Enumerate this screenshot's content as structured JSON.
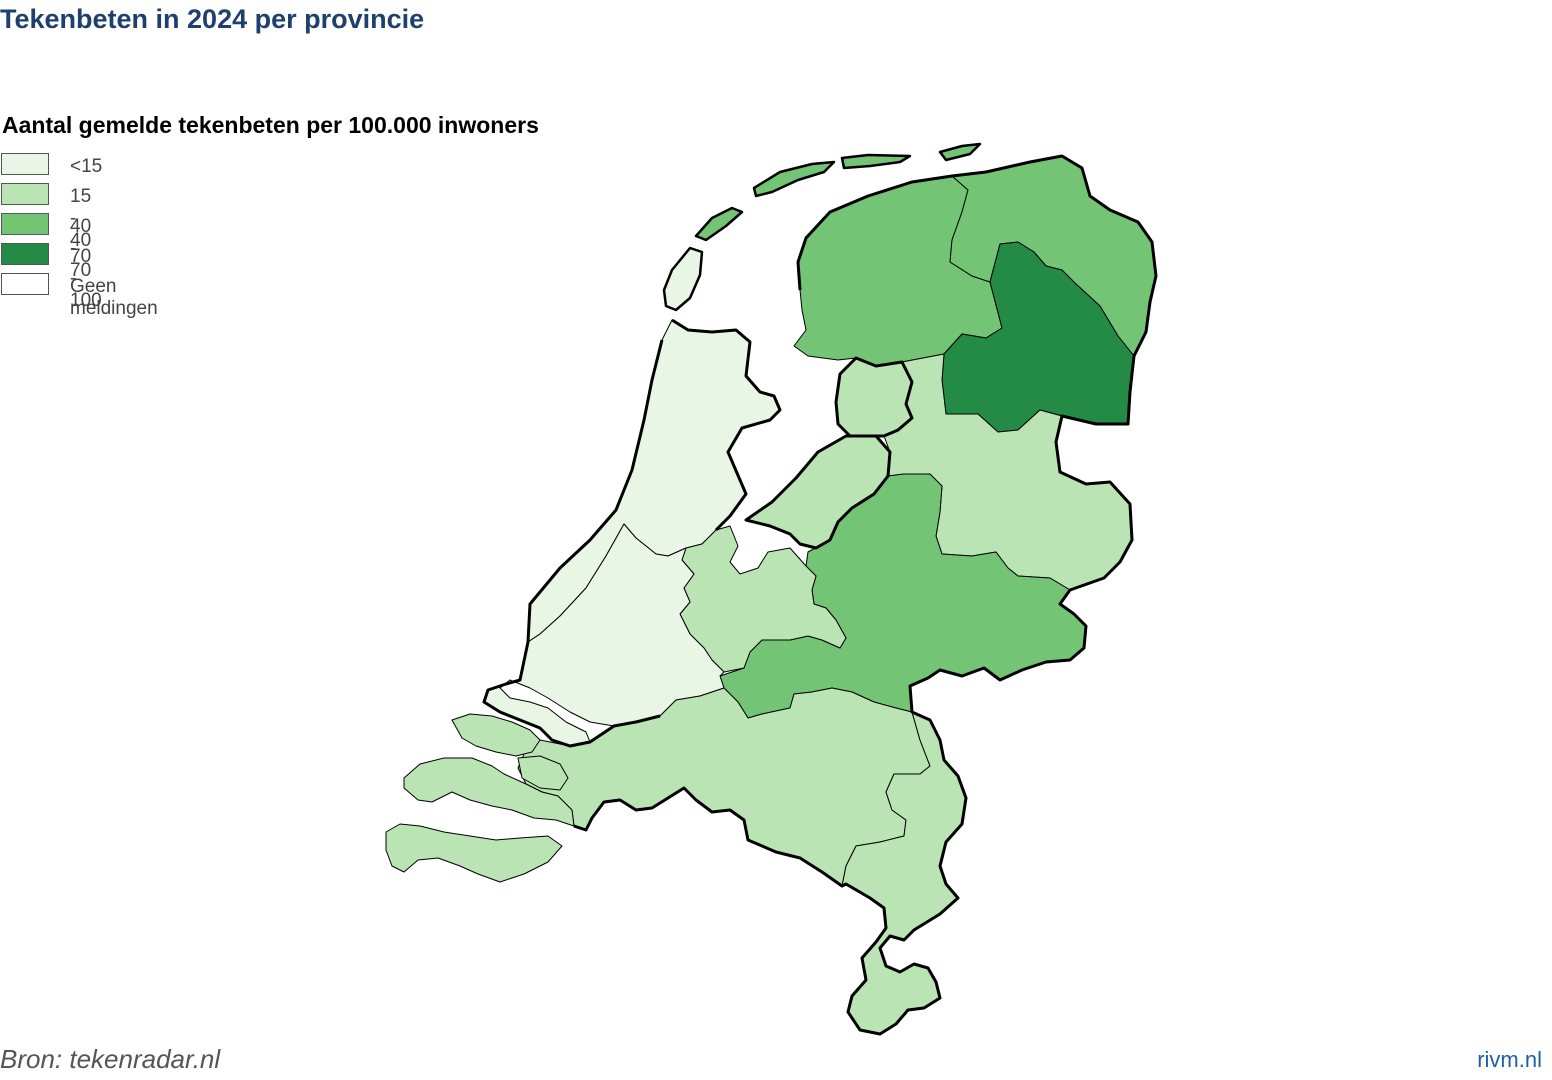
{
  "title": "Tekenbeten in 2024 per provincie",
  "subtitle": "Aantal gemelde tekenbeten per 100.000 inwoners",
  "legend": [
    {
      "label": "<15",
      "color": "#eaf6e5"
    },
    {
      "label": "15 - 40",
      "color": "#bae4b3"
    },
    {
      "label": "40 - 70",
      "color": "#74c476"
    },
    {
      "label": "70 - 100",
      "color": "#238b45"
    },
    {
      "label": "Geen meldingen",
      "color": "#ffffff"
    }
  ],
  "provinces": [
    {
      "name": "Groningen",
      "class": "40 - 70"
    },
    {
      "name": "Friesland",
      "class": "40 - 70"
    },
    {
      "name": "Drenthe",
      "class": "70 - 100"
    },
    {
      "name": "Overijssel",
      "class": "15 - 40"
    },
    {
      "name": "Flevoland",
      "class": "15 - 40"
    },
    {
      "name": "Gelderland",
      "class": "40 - 70"
    },
    {
      "name": "Utrecht",
      "class": "15 - 40"
    },
    {
      "name": "Noord-Holland",
      "class": "<15"
    },
    {
      "name": "Zuid-Holland",
      "class": "<15"
    },
    {
      "name": "Zeeland",
      "class": "15 - 40"
    },
    {
      "name": "Noord-Brabant",
      "class": "15 - 40"
    },
    {
      "name": "Limburg",
      "class": "15 - 40"
    }
  ],
  "source": "Bron: tekenradar.nl",
  "brand": "rivm.nl"
}
